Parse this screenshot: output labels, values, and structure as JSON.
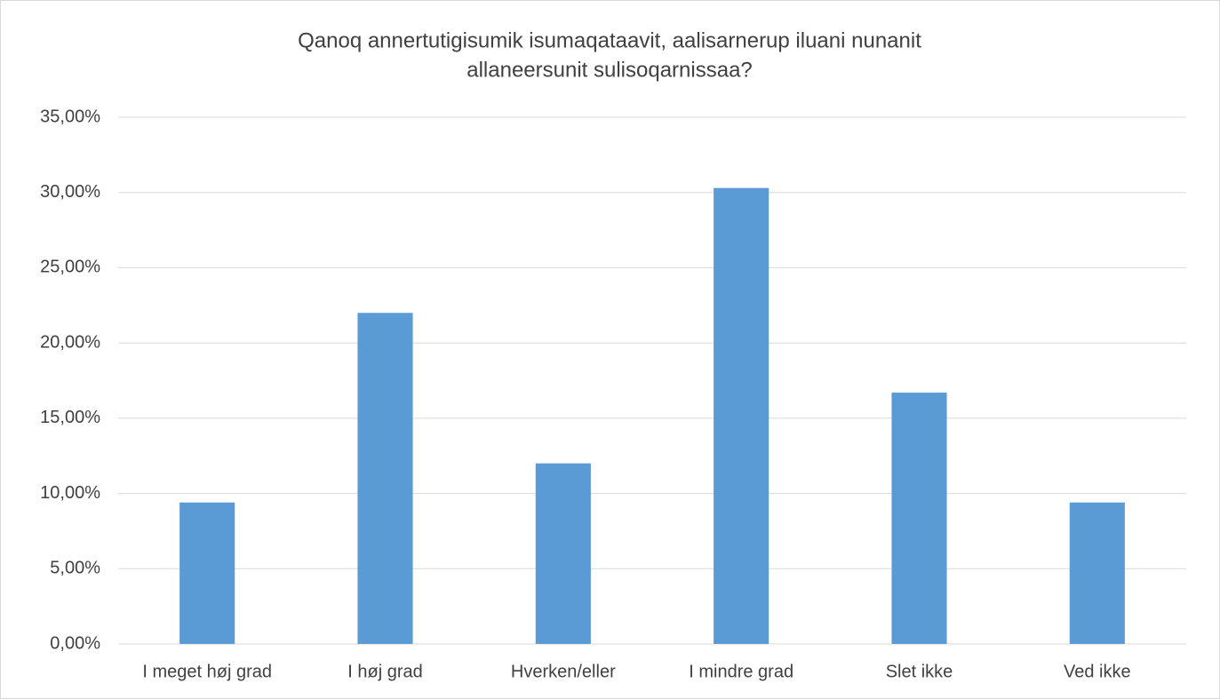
{
  "chart_data": {
    "type": "bar",
    "title": [
      "Qanoq annertutigisumik isumaqataavit, aalisarnerup iluani nunanit",
      "allaneersunit sulisoqarnissaa?"
    ],
    "categories": [
      "I meget høj grad",
      "I høj grad",
      "Hverken/eller",
      "I mindre grad",
      "Slet ikke",
      "Ved ikke"
    ],
    "values": [
      9.4,
      22.0,
      12.0,
      30.3,
      16.7,
      9.4
    ],
    "color": "#5b9bd5",
    "ylim": [
      0,
      35
    ],
    "yticks": [
      {
        "value": 0,
        "label": "0,00%"
      },
      {
        "value": 5,
        "label": "5,00%"
      },
      {
        "value": 10,
        "label": "10,00%"
      },
      {
        "value": 15,
        "label": "15,00%"
      },
      {
        "value": 20,
        "label": "20,00%"
      },
      {
        "value": 25,
        "label": "25,00%"
      },
      {
        "value": 30,
        "label": "30,00%"
      },
      {
        "value": 35,
        "label": "35,00%"
      }
    ],
    "grid": true
  }
}
